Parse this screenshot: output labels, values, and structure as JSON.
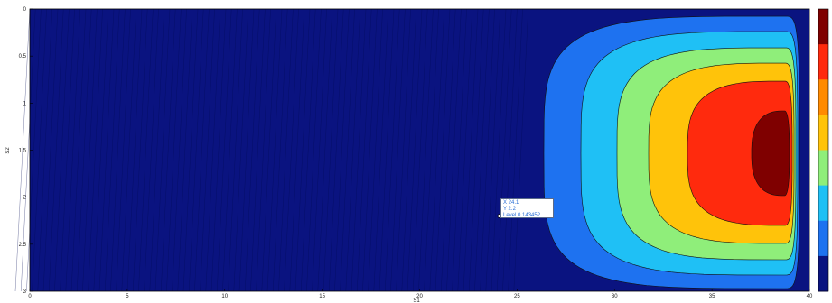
{
  "chart_data": {
    "type": "contour",
    "title": "",
    "xlabel": "S1",
    "ylabel": "S2",
    "xlim": [
      0,
      40
    ],
    "ylim": [
      0,
      3
    ],
    "y_reversed": true,
    "x_ticks": [
      "0",
      "5",
      "10",
      "15",
      "20",
      "25",
      "30",
      "35",
      "40"
    ],
    "y_ticks": [
      "0",
      "0.5",
      "1",
      "1.5",
      "2",
      "2.5",
      "3"
    ],
    "contour_center": {
      "x": 38.2,
      "y": 1.6
    },
    "filled_levels": [
      {
        "level": 1,
        "color": "#0a1380"
      },
      {
        "level": 2,
        "color": "#1e72f0"
      },
      {
        "level": 3,
        "color": "#1fc0f5"
      },
      {
        "level": 4,
        "color": "#8fee7a"
      },
      {
        "level": 5,
        "color": "#ffc30a"
      },
      {
        "level": 6,
        "color": "#ff2a0d"
      },
      {
        "level": 7,
        "color": "#7f0000"
      }
    ],
    "colorbar_colors": [
      "#7f0000",
      "#ff2a0d",
      "#ff8a00",
      "#ffc30a",
      "#8fee7a",
      "#1fc0f5",
      "#1e72f0",
      "#0a1380"
    ],
    "datatip": {
      "x_text": "X 24.1",
      "y_text": "Y 2.2",
      "level_text": "Level 0.143452",
      "point": {
        "x": 24.1,
        "y": 2.2
      }
    }
  }
}
